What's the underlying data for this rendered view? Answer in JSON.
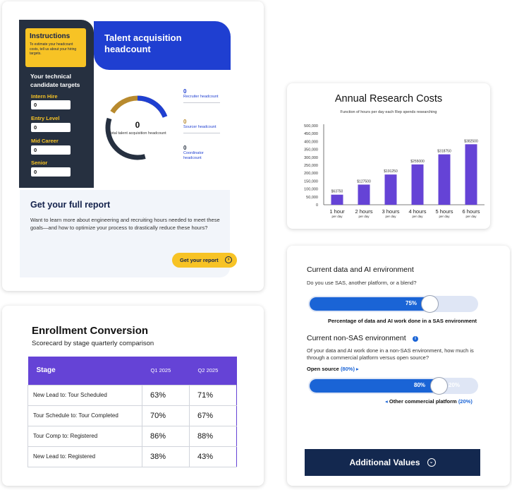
{
  "talent": {
    "instructions_title": "Instructions",
    "instructions_text": "To estimate your headcount costs, tell us about your hiring targets.",
    "targets_title": "Your technical candidate targets",
    "levels": [
      {
        "label": "Intern Hire",
        "value": "0"
      },
      {
        "label": "Entry Level",
        "value": "0"
      },
      {
        "label": "Mid Career",
        "value": "0"
      },
      {
        "label": "Senior",
        "value": "0"
      }
    ],
    "header_title": "Talent acquisition headcount",
    "total_value": "0",
    "total_label": "Total talent acquisition headcount",
    "stats": [
      {
        "value": "0",
        "label": "Recruiter headcount",
        "color": "#1f3fd1"
      },
      {
        "value": "0",
        "label": "Sourcer headcount",
        "color": "#b88a2e"
      },
      {
        "value": "0",
        "label": "Coordinator headcount",
        "color": "#263040"
      }
    ],
    "report_title": "Get your full report",
    "report_text": "Want to learn more about engineering and recruiting hours needed to meet these goals—and how to optimize your process to drastically reduce these hours?",
    "report_button": "Get your report",
    "colors": {
      "navy": "#263040",
      "yellow": "#f7c325",
      "blue": "#1f3fd1",
      "gold": "#b88a2e"
    }
  },
  "research": {
    "title": "Annual Research Costs",
    "subtitle": "Function of hours per day each Rep spends researching"
  },
  "chart_data": {
    "type": "bar",
    "title": "Annual Research Costs",
    "subtitle": "Function of hours per day each Rep spends researching",
    "categories": [
      "1 hour",
      "2 hours",
      "3 hours",
      "4 hours",
      "5 hours",
      "6 hours"
    ],
    "category_sub": "per day",
    "values": [
      63750,
      127500,
      191250,
      255000,
      318750,
      382500
    ],
    "value_labels": [
      "$63750",
      "$127500",
      "$191250",
      "$255000",
      "$318750",
      "$382500"
    ],
    "ylim": [
      0,
      500000
    ],
    "yticks": [
      0,
      50000,
      100000,
      150000,
      200000,
      250000,
      300000,
      350000,
      400000,
      450000,
      500000
    ],
    "ytick_labels": [
      "0",
      "50,000",
      "100,000",
      "150,000",
      "200,000",
      "250,000",
      "300,000",
      "350,000",
      "400,000",
      "450,000",
      "500,000"
    ],
    "bar_color": "#6543d6",
    "grid": false
  },
  "enrollment": {
    "title": "Enrollment Conversion",
    "subtitle": "Scorecard by stage quarterly comparison",
    "columns": [
      "Stage",
      "Q1 2025",
      "Q2 2025"
    ],
    "rows": [
      {
        "stage": "New Lead to: Tour Scheduled",
        "q1": "63%",
        "q2": "71%"
      },
      {
        "stage": "Tour Schedule to: Tour Completed",
        "q1": "70%",
        "q2": "67%"
      },
      {
        "stage": "Tour Comp to: Registered",
        "q1": "86%",
        "q2": "88%"
      },
      {
        "stage": "New Lead to: Registered",
        "q1": "38%",
        "q2": "43%"
      }
    ],
    "header_color": "#6543d6"
  },
  "ai": {
    "heading1": "Current data and AI environment",
    "question1": "Do you use SAS, another platform, or a blend?",
    "slider1_value": "75%",
    "slider1_fraction": 0.75,
    "slider1_caption": "Percentage of data and AI work done in a SAS environment",
    "heading2": "Current non-SAS environment",
    "info_icon": "i",
    "question2": "Of your data and AI work done in a non-SAS environment, how much is through a commercial platform versus open source?",
    "open_source_label": "Open source ",
    "open_source_pct": "(80%)",
    "slider2_left_value": "80%",
    "slider2_right_value": "20%",
    "slider2_fraction": 0.8,
    "commercial_label": "Other commercial  platform ",
    "commercial_pct": "(20%)",
    "button_label": "Additional Values",
    "accent": "#1a64d6",
    "button_color": "#13284f"
  }
}
